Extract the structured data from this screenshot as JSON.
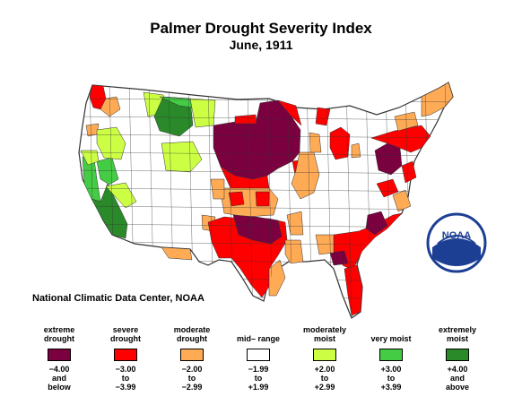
{
  "title": "Palmer Drought Severity Index",
  "subtitle": "June, 1911",
  "credit": "National Climatic Data Center, NOAA",
  "logo_text": "NOAA",
  "colors": {
    "extreme_drought": "#7b0040",
    "severe_drought": "#ff0000",
    "moderate_drought": "#ffaa55",
    "mid_range": "#ffffff",
    "moderately_moist": "#ccff44",
    "very_moist": "#44cc44",
    "extremely_moist": "#2a8a2a",
    "boundary": "#333333"
  },
  "legend": [
    {
      "label": "extreme drought",
      "range": "−4.00\nand\nbelow",
      "color": "#7b0040"
    },
    {
      "label": "severe drought",
      "range": "−3.00\nto\n−3.99",
      "color": "#ff0000"
    },
    {
      "label": "moderate drought",
      "range": "−2.00\nto\n−2.99",
      "color": "#ffaa55"
    },
    {
      "label": "mid– range",
      "range": "−1.99\nto\n+1.99",
      "color": "#ffffff"
    },
    {
      "label": "moderately moist",
      "range": "+2.00\nto\n+2.99",
      "color": "#ccff44"
    },
    {
      "label": "very moist",
      "range": "+3.00\nto\n+3.99",
      "color": "#44cc44"
    },
    {
      "label": "extremely moist",
      "range": "+4.00\nand\nabove",
      "color": "#2a8a2a"
    }
  ]
}
